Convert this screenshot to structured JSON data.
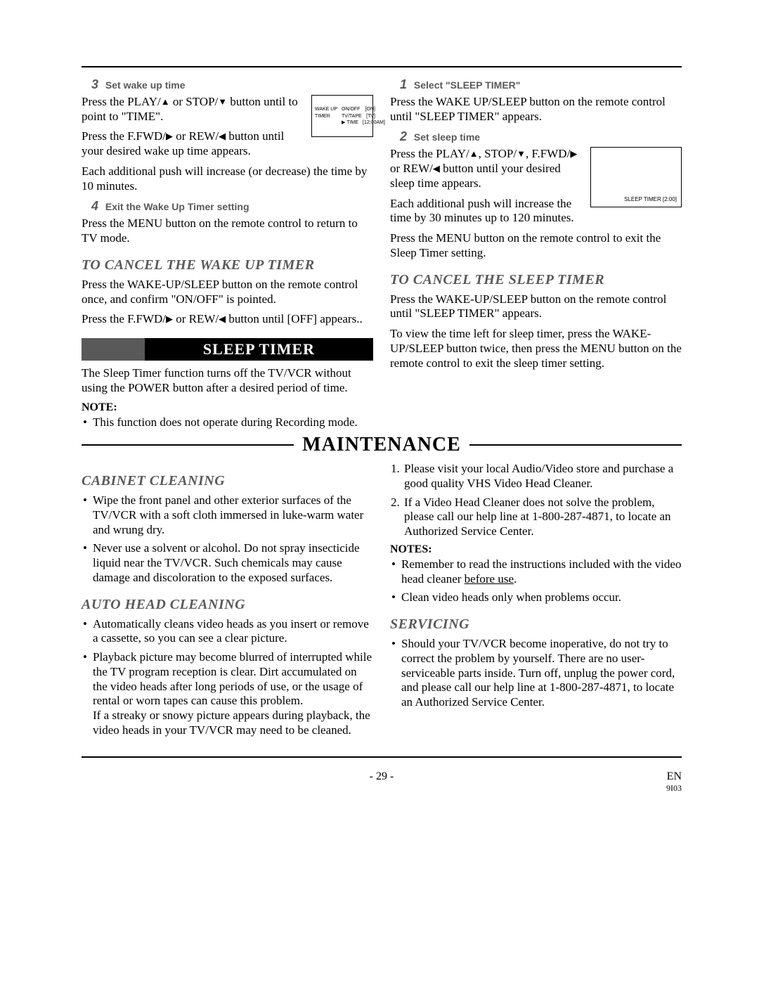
{
  "steps": {
    "left3": {
      "num": "3",
      "title": "Set wake up time",
      "p1a": "Press the PLAY/",
      "p1b": " or STOP/",
      "p1c": " button until to point to \"TIME\".",
      "p2a": "Press the F.FWD/",
      "p2b": " or REW/",
      "p2c": " button until your desired wake up time appears.",
      "p3": "Each additional push will increase (or decrease) the time by 10 minutes."
    },
    "left4": {
      "num": "4",
      "title": "Exit the Wake Up Timer setting",
      "p1": "Press the MENU button on the remote control to return to TV mode."
    },
    "right1": {
      "num": "1",
      "title": "Select \"SLEEP TIMER\"",
      "p1": "Press the WAKE UP/SLEEP button on the remote control until \"SLEEP TIMER\" appears."
    },
    "right2": {
      "num": "2",
      "title": "Set sleep time",
      "p1a": "Press the PLAY/",
      "p1b": ", STOP/",
      "p1c": ", F.FWD/",
      "p1d": " or REW/",
      "p1e": " button until your desired sleep time appears.",
      "p2": "Each additional push will increase the time by 30 minutes up to 120 minutes.",
      "p3": "Press the MENU button on the remote control to exit the Sleep Timer setting."
    }
  },
  "cancel_wakeup": {
    "heading": "TO CANCEL THE WAKE UP TIMER",
    "p1": "Press the WAKE-UP/SLEEP button on the remote control once, and confirm \"ON/OFF\" is pointed.",
    "p2a": "Press the F.FWD/",
    "p2b": " or REW/",
    "p2c": " button until [OFF] appears.."
  },
  "sleep_bar": {
    "title": "SLEEP TIMER"
  },
  "sleep_intro": "The Sleep Timer function turns off the TV/VCR without using the POWER button after a desired period of time.",
  "note_label": "NOTE:",
  "sleep_note_bullet": "This function does not operate during Recording mode.",
  "cancel_sleep": {
    "heading": "TO CANCEL THE SLEEP TIMER",
    "p1": "Press the WAKE-UP/SLEEP button on the remote control until \"SLEEP TIMER\" appears.",
    "p2": "To view the time left for sleep timer, press the WAKE-UP/SLEEP button twice, then press the MENU button on the remote control to exit the sleep timer setting."
  },
  "osd_wakeup": {
    "r1c1": "WAKE UP",
    "r1c2": "ON/OFF",
    "r1c3": "[ON]",
    "r2c1": "TIMER",
    "r2c2": "TV/TAPE",
    "r2c3": "[TV]",
    "r3c1": "",
    "r3c2": "▶ TIME",
    "r3c3": "[12:00AM]"
  },
  "osd_sleep": {
    "line": "SLEEP TIMER    [2:00]"
  },
  "maintenance_title": "MAINTENANCE",
  "cabinet": {
    "heading": "CABINET CLEANING",
    "b1": "Wipe the front panel and other exterior surfaces of the TV/VCR with a soft cloth immersed in luke-warm water and wrung dry.",
    "b2": "Never use a solvent or alcohol. Do not spray insecticide liquid near the TV/VCR. Such chemicals may cause damage and discoloration to the exposed surfaces."
  },
  "autohead": {
    "heading": "AUTO HEAD CLEANING",
    "b1": "Automatically cleans video heads as you insert or remove a cassette, so you can see a clear picture.",
    "b2": "Playback picture may become blurred of interrupted while the TV program reception is clear. Dirt accumulated on the video heads after long periods of use, or the usage of rental or worn tapes can cause this problem.",
    "b2_cont": "If a streaky or snowy picture appears during playback, the video heads in your TV/VCR may need to be cleaned."
  },
  "headclean_right": {
    "n1": "Please visit your local Audio/Video store and purchase a good quality VHS Video Head Cleaner.",
    "n2": "If a Video Head Cleaner does not solve the problem, please call our help line at 1-800-287-4871, to locate an Authorized Service Center."
  },
  "notes_label": "NOTES:",
  "notes_bullets": {
    "b1a": "Remember to read the instructions included with the video head cleaner ",
    "b1b": "before use",
    "b1c": ".",
    "b2": "Clean video heads only when problems occur."
  },
  "servicing": {
    "heading": "SERVICING",
    "b1": "Should your TV/VCR become inoperative, do not try to correct the problem by yourself. There are no user-serviceable parts inside. Turn off, unplug the power cord, and please call our help line at 1-800-287-4871, to locate an Authorized Service Center."
  },
  "footer": {
    "page": "- 29 -",
    "lang": "EN",
    "code": "9I03"
  },
  "colors": {
    "accent": "#595959",
    "text": "#000000",
    "bg": "#ffffff"
  }
}
